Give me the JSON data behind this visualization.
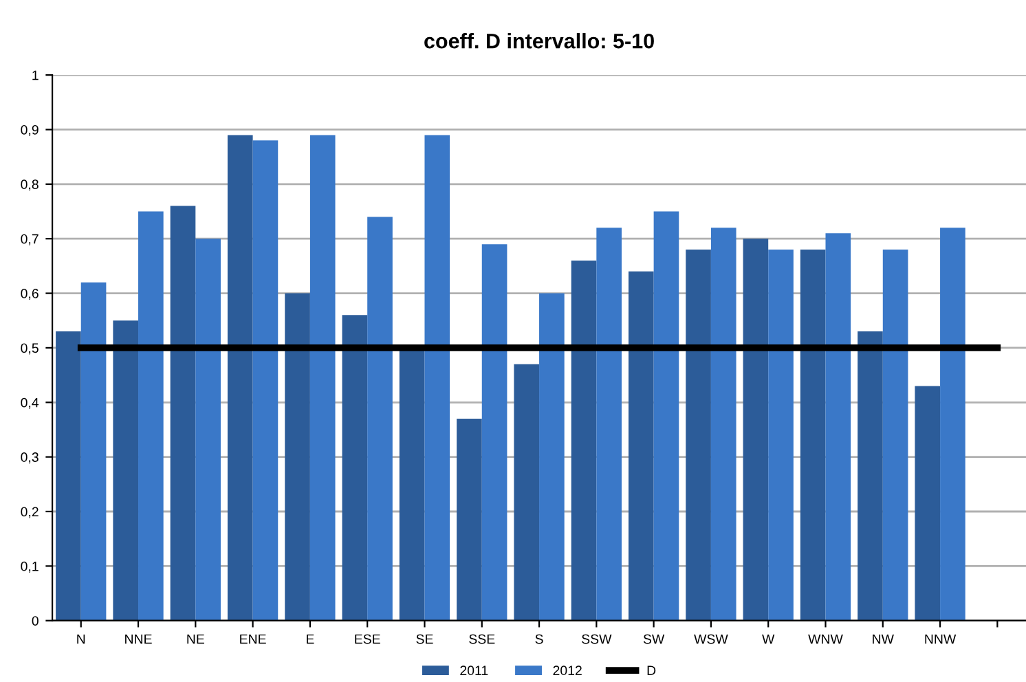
{
  "chart_data": {
    "type": "bar",
    "title": "coeff. D intervallo: 5-10",
    "categories": [
      "N",
      "NNE",
      "NE",
      "ENE",
      "E",
      "ESE",
      "SE",
      "SSE",
      "S",
      "SSW",
      "SW",
      "WSW",
      "W",
      "WNW",
      "NW",
      "NNW",
      null
    ],
    "series": [
      {
        "name": "2011",
        "color": "#2c5c99",
        "values": [
          0.53,
          0.55,
          0.76,
          0.89,
          0.6,
          0.56,
          0.5,
          0.37,
          0.47,
          0.66,
          0.64,
          0.68,
          0.7,
          0.68,
          0.53,
          0.43,
          null
        ]
      },
      {
        "name": "2012",
        "color": "#3a78c8",
        "values": [
          0.62,
          0.75,
          0.7,
          0.88,
          0.89,
          0.74,
          0.89,
          0.69,
          0.6,
          0.72,
          0.75,
          0.72,
          0.68,
          0.71,
          0.68,
          0.72,
          null
        ]
      },
      {
        "name": "D",
        "type": "line",
        "color": "#000000",
        "values": [
          0.5,
          0.5,
          0.5,
          0.5,
          0.5,
          0.5,
          0.5,
          0.5,
          0.5,
          0.5,
          0.5,
          0.5,
          0.5,
          0.5,
          0.5,
          0.5,
          0.5
        ]
      }
    ],
    "ylim": [
      0,
      1
    ],
    "yticks": [
      0,
      {
        "value": 0.1,
        "label": "0,1"
      },
      {
        "value": 0.2,
        "label": "0,2"
      },
      {
        "value": 0.3,
        "label": "0,3"
      },
      {
        "value": 0.4,
        "label": "0,4"
      },
      {
        "value": 0.5,
        "label": "0,5"
      },
      {
        "value": 0.6,
        "label": "0,6"
      },
      {
        "value": 0.7,
        "label": "0,7"
      },
      {
        "value": 0.8,
        "label": "0,8"
      },
      {
        "value": 0.9,
        "label": "0,9"
      },
      1
    ],
    "grid": "y",
    "legend": "bottom"
  }
}
